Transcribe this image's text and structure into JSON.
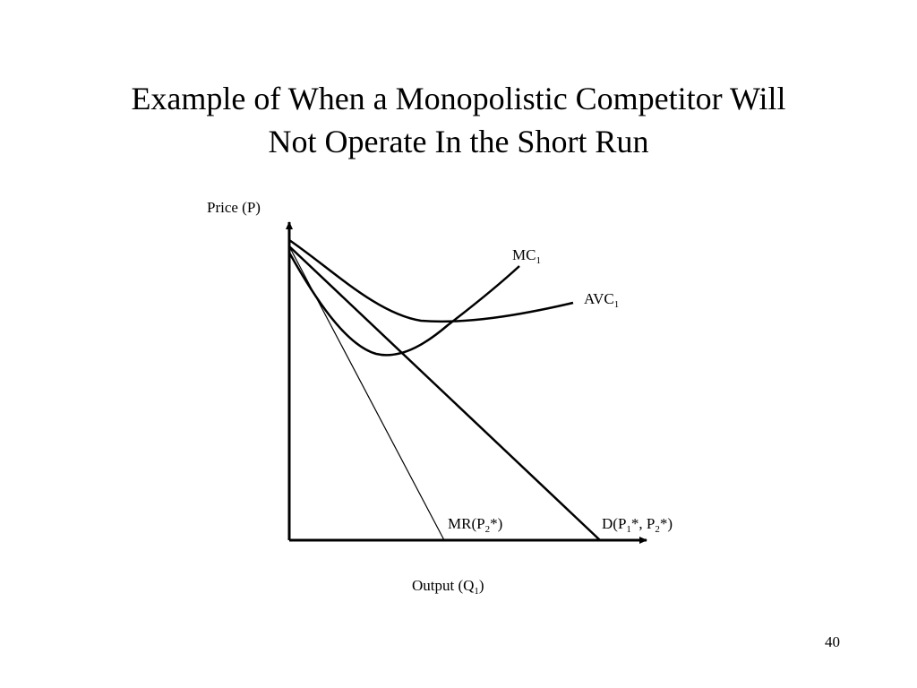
{
  "slide": {
    "title_line1": "Example of When a Monopolistic Competitor Will",
    "title_line2": "Not Operate In the Short Run",
    "page_number": "40"
  },
  "diagram": {
    "y_axis_label": "Price (P)",
    "x_axis_label": {
      "base": "Output (Q",
      "sub": "1",
      "tail": ")"
    },
    "curves": {
      "mc": {
        "base": "MC",
        "sub": "1"
      },
      "avc": {
        "base": "AVC",
        "sub": "1"
      },
      "mr": {
        "base": "MR(P",
        "sub": "2",
        "tail": "*)"
      },
      "demand": {
        "base": "D(P",
        "sub1": "1",
        "mid": "*, P",
        "sub2": "2",
        "tail": "*)"
      }
    }
  }
}
